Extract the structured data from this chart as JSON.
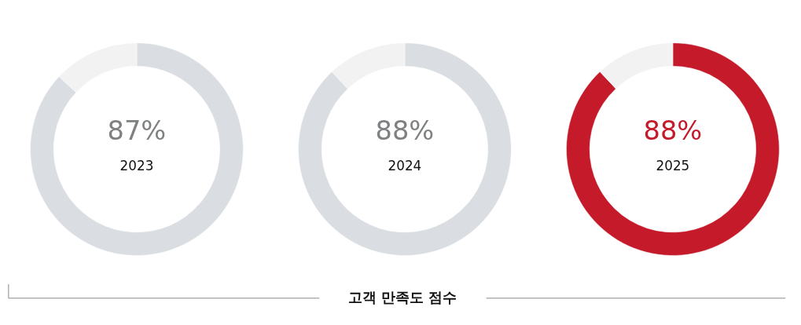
{
  "chart_data": [
    {
      "type": "donut",
      "title": "2023",
      "categories": [
        null,
        null
      ],
      "values": [
        87,
        13
      ],
      "colors": [
        "#dadde1",
        "#f2f2f2"
      ],
      "value_labels": [
        "87%",
        null
      ]
    },
    {
      "type": "donut",
      "title": "2024",
      "categories": [
        null,
        null
      ],
      "values": [
        88,
        12
      ],
      "colors": [
        "#dadde1",
        "#f2f2f2"
      ],
      "value_labels": [
        "88%",
        null
      ]
    },
    {
      "type": "donut",
      "title": "2025",
      "categories": [
        null,
        null
      ],
      "values": [
        88,
        12
      ],
      "colors": [
        "#c41a2a",
        "#f2f2f2"
      ],
      "value_labels": [
        "88%",
        null
      ]
    },
    {
      "type": "other",
      "title": "고객 만족도 점수"
    }
  ]
}
